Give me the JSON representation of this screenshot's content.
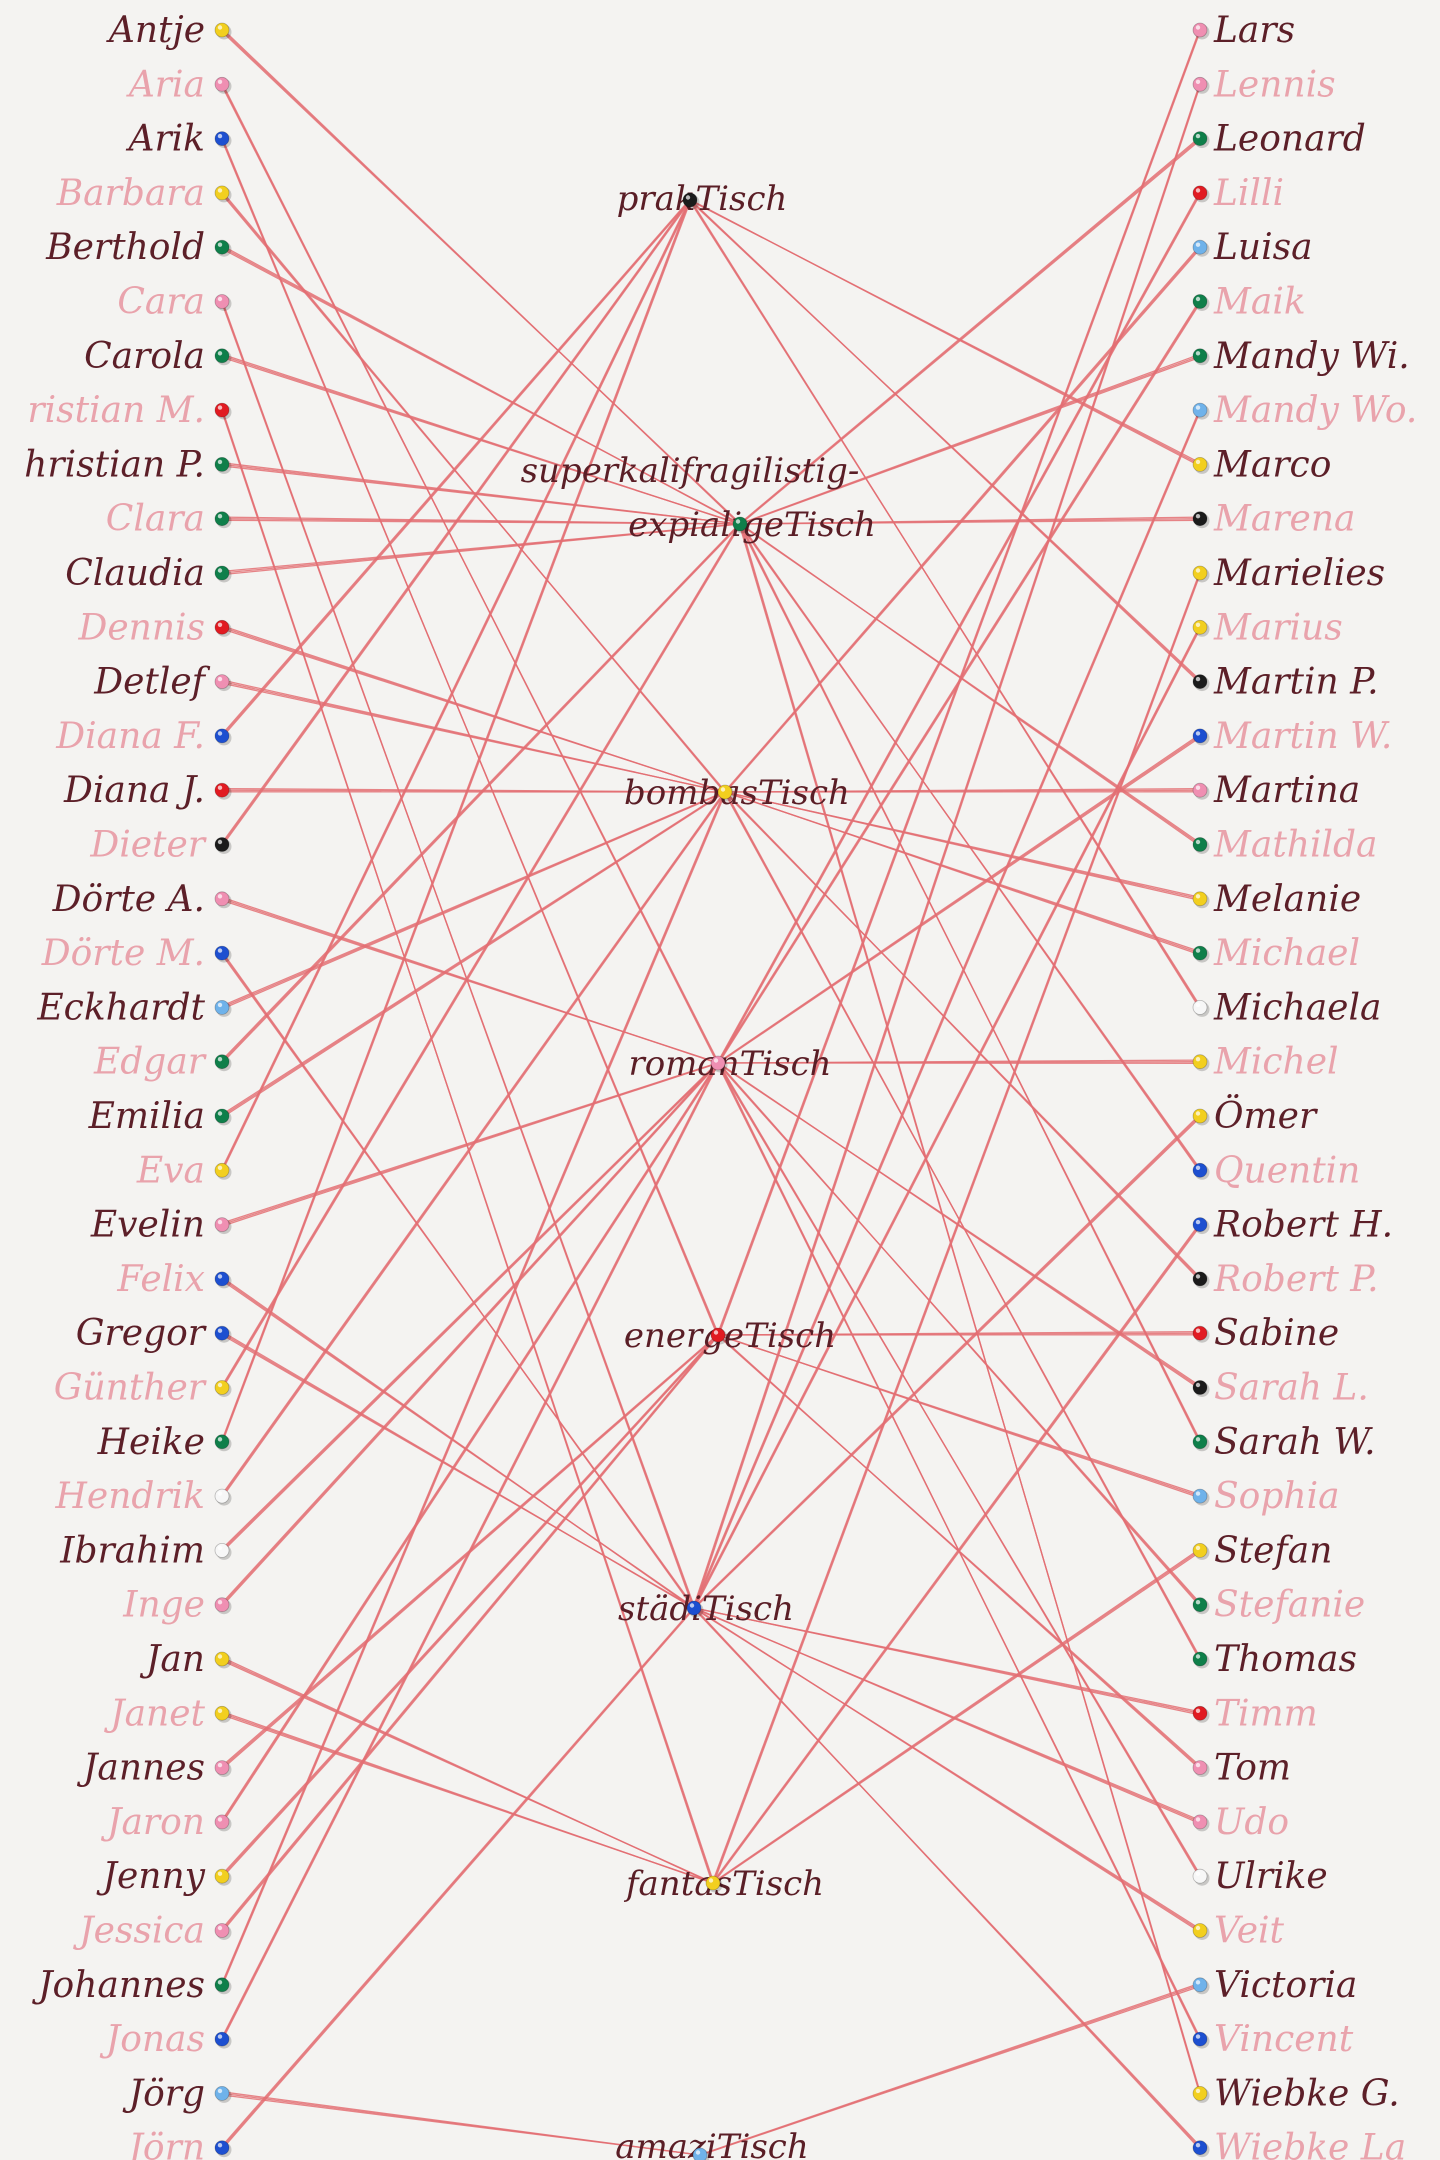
{
  "colors": {
    "dark_text": "#5c1f28",
    "light_text": "#e9a3ac",
    "thread": "#e36f73",
    "pins": {
      "yellow": "#f2cf1f",
      "pink": "#ef8fb2",
      "blue": "#1d4fd0",
      "green": "#0f7f4a",
      "red": "#e11b22",
      "black": "#1b1b1b",
      "lightblue": "#6fb2ea",
      "white": "#f7f7f7"
    }
  },
  "left_names": [
    {
      "name": "Antje",
      "style": "dark",
      "pin": "yellow"
    },
    {
      "name": "Aria",
      "style": "light",
      "pin": "pink"
    },
    {
      "name": "Arik",
      "style": "dark",
      "pin": "blue"
    },
    {
      "name": "Barbara",
      "style": "light",
      "pin": "yellow"
    },
    {
      "name": "Berthold",
      "style": "dark",
      "pin": "green"
    },
    {
      "name": "Cara",
      "style": "light",
      "pin": "pink"
    },
    {
      "name": "Carola",
      "style": "dark",
      "pin": "green"
    },
    {
      "name": "ristian M.",
      "style": "light",
      "pin": "red"
    },
    {
      "name": "hristian P.",
      "style": "dark",
      "pin": "green"
    },
    {
      "name": "Clara",
      "style": "light",
      "pin": "green"
    },
    {
      "name": "Claudia",
      "style": "dark",
      "pin": "green"
    },
    {
      "name": "Dennis",
      "style": "light",
      "pin": "red"
    },
    {
      "name": "Detlef",
      "style": "dark",
      "pin": "pink"
    },
    {
      "name": "Diana F.",
      "style": "light",
      "pin": "blue"
    },
    {
      "name": "Diana J.",
      "style": "dark",
      "pin": "red"
    },
    {
      "name": "Dieter",
      "style": "light",
      "pin": "black"
    },
    {
      "name": "Dörte A.",
      "style": "dark",
      "pin": "pink"
    },
    {
      "name": "Dörte M.",
      "style": "light",
      "pin": "blue"
    },
    {
      "name": "Eckhardt",
      "style": "dark",
      "pin": "lightblue"
    },
    {
      "name": "Edgar",
      "style": "light",
      "pin": "green"
    },
    {
      "name": "Emilia",
      "style": "dark",
      "pin": "green"
    },
    {
      "name": "Eva",
      "style": "light",
      "pin": "yellow"
    },
    {
      "name": "Evelin",
      "style": "dark",
      "pin": "pink"
    },
    {
      "name": "Felix",
      "style": "light",
      "pin": "blue"
    },
    {
      "name": "Gregor",
      "style": "dark",
      "pin": "blue"
    },
    {
      "name": "Günther",
      "style": "light",
      "pin": "yellow"
    },
    {
      "name": "Heike",
      "style": "dark",
      "pin": "green"
    },
    {
      "name": "Hendrik",
      "style": "light",
      "pin": "white"
    },
    {
      "name": "Ibrahim",
      "style": "dark",
      "pin": "white"
    },
    {
      "name": "Inge",
      "style": "light",
      "pin": "pink"
    },
    {
      "name": "Jan",
      "style": "dark",
      "pin": "yellow"
    },
    {
      "name": "Janet",
      "style": "light",
      "pin": "yellow"
    },
    {
      "name": "Jannes",
      "style": "dark",
      "pin": "pink"
    },
    {
      "name": "Jaron",
      "style": "light",
      "pin": "pink"
    },
    {
      "name": "Jenny",
      "style": "dark",
      "pin": "yellow"
    },
    {
      "name": "Jessica",
      "style": "light",
      "pin": "pink"
    },
    {
      "name": "Johannes",
      "style": "dark",
      "pin": "green"
    },
    {
      "name": "Jonas",
      "style": "light",
      "pin": "blue"
    },
    {
      "name": "Jörg",
      "style": "dark",
      "pin": "lightblue"
    },
    {
      "name": "Jörn",
      "style": "light",
      "pin": "blue"
    }
  ],
  "right_names": [
    {
      "name": "Lars",
      "style": "dark",
      "pin": "pink"
    },
    {
      "name": "Lennis",
      "style": "light",
      "pin": "pink"
    },
    {
      "name": "Leonard",
      "style": "dark",
      "pin": "green"
    },
    {
      "name": "Lilli",
      "style": "light",
      "pin": "red"
    },
    {
      "name": "Luisa",
      "style": "dark",
      "pin": "lightblue"
    },
    {
      "name": "Maik",
      "style": "light",
      "pin": "green"
    },
    {
      "name": "Mandy Wi.",
      "style": "dark",
      "pin": "green"
    },
    {
      "name": "Mandy Wo.",
      "style": "light",
      "pin": "lightblue"
    },
    {
      "name": "Marco",
      "style": "dark",
      "pin": "yellow"
    },
    {
      "name": "Marena",
      "style": "light",
      "pin": "black"
    },
    {
      "name": "Marielies",
      "style": "dark",
      "pin": "yellow"
    },
    {
      "name": "Marius",
      "style": "light",
      "pin": "yellow"
    },
    {
      "name": "Martin P.",
      "style": "dark",
      "pin": "black"
    },
    {
      "name": "Martin W.",
      "style": "light",
      "pin": "blue"
    },
    {
      "name": "Martina",
      "style": "dark",
      "pin": "pink"
    },
    {
      "name": "Mathilda",
      "style": "light",
      "pin": "green"
    },
    {
      "name": "Melanie",
      "style": "dark",
      "pin": "yellow"
    },
    {
      "name": "Michael",
      "style": "light",
      "pin": "green"
    },
    {
      "name": "Michaela",
      "style": "dark",
      "pin": "white"
    },
    {
      "name": "Michel",
      "style": "light",
      "pin": "yellow"
    },
    {
      "name": "Ömer",
      "style": "dark",
      "pin": "yellow"
    },
    {
      "name": "Quentin",
      "style": "light",
      "pin": "blue"
    },
    {
      "name": "Robert H.",
      "style": "dark",
      "pin": "blue"
    },
    {
      "name": "Robert P.",
      "style": "light",
      "pin": "black"
    },
    {
      "name": "Sabine",
      "style": "dark",
      "pin": "red"
    },
    {
      "name": "Sarah L.",
      "style": "light",
      "pin": "black"
    },
    {
      "name": "Sarah W.",
      "style": "dark",
      "pin": "green"
    },
    {
      "name": "Sophia",
      "style": "light",
      "pin": "lightblue"
    },
    {
      "name": "Stefan",
      "style": "dark",
      "pin": "yellow"
    },
    {
      "name": "Stefanie",
      "style": "light",
      "pin": "green"
    },
    {
      "name": "Thomas",
      "style": "dark",
      "pin": "green"
    },
    {
      "name": "Timm",
      "style": "light",
      "pin": "red"
    },
    {
      "name": "Tom",
      "style": "dark",
      "pin": "pink"
    },
    {
      "name": "Udo",
      "style": "light",
      "pin": "pink"
    },
    {
      "name": "Ulrike",
      "style": "dark",
      "pin": "white"
    },
    {
      "name": "Veit",
      "style": "light",
      "pin": "yellow"
    },
    {
      "name": "Victoria",
      "style": "dark",
      "pin": "lightblue"
    },
    {
      "name": "Vincent",
      "style": "light",
      "pin": "blue"
    },
    {
      "name": "Wiebke G.",
      "style": "dark",
      "pin": "yellow"
    },
    {
      "name": "Wiebke La",
      "style": "light",
      "pin": "blue"
    }
  ],
  "tables": [
    {
      "label": "prakTisch",
      "pin": "black"
    },
    {
      "label": "superkalifragilistig-",
      "pin": ""
    },
    {
      "label": "expialigeTisch",
      "pin": "green"
    },
    {
      "label": "bombasTisch",
      "pin": "yellow"
    },
    {
      "label": "romanTisch",
      "pin": "pink"
    },
    {
      "label": "energeTisch",
      "pin": "red"
    },
    {
      "label": "städiTisch",
      "pin": "blue"
    },
    {
      "label": "fantasTisch",
      "pin": "yellow"
    },
    {
      "label": "amaziTisch",
      "pin": "lightblue"
    }
  ],
  "connections": [
    {
      "from": "left",
      "index": 0,
      "table": 2
    },
    {
      "from": "left",
      "index": 1,
      "table": 4
    },
    {
      "from": "left",
      "index": 2,
      "table": 5
    },
    {
      "from": "left",
      "index": 3,
      "table": 3
    },
    {
      "from": "left",
      "index": 4,
      "table": 2
    },
    {
      "from": "left",
      "index": 5,
      "table": 6
    },
    {
      "from": "left",
      "index": 6,
      "table": 2
    },
    {
      "from": "left",
      "index": 7,
      "table": 7
    },
    {
      "from": "left",
      "index": 8,
      "table": 2
    },
    {
      "from": "left",
      "index": 9,
      "table": 2
    },
    {
      "from": "left",
      "index": 10,
      "table": 2
    },
    {
      "from": "left",
      "index": 11,
      "table": 3
    },
    {
      "from": "left",
      "index": 12,
      "table": 3
    },
    {
      "from": "left",
      "index": 13,
      "table": 0
    },
    {
      "from": "left",
      "index": 14,
      "table": 3
    },
    {
      "from": "left",
      "index": 15,
      "table": 0
    },
    {
      "from": "left",
      "index": 16,
      "table": 4
    },
    {
      "from": "left",
      "index": 17,
      "table": 6
    },
    {
      "from": "left",
      "index": 18,
      "table": 3
    },
    {
      "from": "left",
      "index": 19,
      "table": 2
    },
    {
      "from": "left",
      "index": 20,
      "table": 3
    },
    {
      "from": "left",
      "index": 21,
      "table": 0
    },
    {
      "from": "left",
      "index": 22,
      "table": 4
    },
    {
      "from": "left",
      "index": 23,
      "table": 6
    },
    {
      "from": "left",
      "index": 24,
      "table": 6
    },
    {
      "from": "left",
      "index": 25,
      "table": 2
    },
    {
      "from": "left",
      "index": 26,
      "table": 0
    },
    {
      "from": "left",
      "index": 27,
      "table": 3
    },
    {
      "from": "left",
      "index": 28,
      "table": 4
    },
    {
      "from": "left",
      "index": 29,
      "table": 4
    },
    {
      "from": "left",
      "index": 30,
      "table": 7
    },
    {
      "from": "left",
      "index": 31,
      "table": 7
    },
    {
      "from": "left",
      "index": 32,
      "table": 5
    },
    {
      "from": "left",
      "index": 33,
      "table": 4
    },
    {
      "from": "left",
      "index": 34,
      "table": 5
    },
    {
      "from": "left",
      "index": 35,
      "table": 5
    },
    {
      "from": "left",
      "index": 36,
      "table": 3
    },
    {
      "from": "left",
      "index": 37,
      "table": 4
    },
    {
      "from": "left",
      "index": 38,
      "table": 8
    },
    {
      "from": "left",
      "index": 39,
      "table": 6
    },
    {
      "from": "right",
      "index": 0,
      "table": 5
    },
    {
      "from": "right",
      "index": 1,
      "table": 6
    },
    {
      "from": "right",
      "index": 2,
      "table": 2
    },
    {
      "from": "right",
      "index": 3,
      "table": 4
    },
    {
      "from": "right",
      "index": 4,
      "table": 3
    },
    {
      "from": "right",
      "index": 5,
      "table": 4
    },
    {
      "from": "right",
      "index": 6,
      "table": 2
    },
    {
      "from": "right",
      "index": 7,
      "table": 6
    },
    {
      "from": "right",
      "index": 8,
      "table": 0
    },
    {
      "from": "right",
      "index": 9,
      "table": 2
    },
    {
      "from": "right",
      "index": 10,
      "table": 7
    },
    {
      "from": "right",
      "index": 11,
      "table": 6
    },
    {
      "from": "right",
      "index": 12,
      "table": 0
    },
    {
      "from": "right",
      "index": 13,
      "table": 4
    },
    {
      "from": "right",
      "index": 14,
      "table": 3
    },
    {
      "from": "right",
      "index": 15,
      "table": 2
    },
    {
      "from": "right",
      "index": 16,
      "table": 3
    },
    {
      "from": "right",
      "index": 17,
      "table": 3
    },
    {
      "from": "right",
      "index": 18,
      "table": 0
    },
    {
      "from": "right",
      "index": 19,
      "table": 4
    },
    {
      "from": "right",
      "index": 20,
      "table": 6
    },
    {
      "from": "right",
      "index": 21,
      "table": 2
    },
    {
      "from": "right",
      "index": 22,
      "table": 7
    },
    {
      "from": "right",
      "index": 23,
      "table": 3
    },
    {
      "from": "right",
      "index": 24,
      "table": 5
    },
    {
      "from": "right",
      "index": 25,
      "table": 4
    },
    {
      "from": "right",
      "index": 26,
      "table": 2
    },
    {
      "from": "right",
      "index": 27,
      "table": 5
    },
    {
      "from": "right",
      "index": 28,
      "table": 7
    },
    {
      "from": "right",
      "index": 29,
      "table": 4
    },
    {
      "from": "right",
      "index": 30,
      "table": 3
    },
    {
      "from": "right",
      "index": 31,
      "table": 6
    },
    {
      "from": "right",
      "index": 32,
      "table": 5
    },
    {
      "from": "right",
      "index": 33,
      "table": 6
    },
    {
      "from": "right",
      "index": 34,
      "table": 4
    },
    {
      "from": "right",
      "index": 35,
      "table": 6
    },
    {
      "from": "right",
      "index": 36,
      "table": 8
    },
    {
      "from": "right",
      "index": 37,
      "table": 4
    },
    {
      "from": "right",
      "index": 38,
      "table": 2
    },
    {
      "from": "right",
      "index": 39,
      "table": 6
    }
  ]
}
